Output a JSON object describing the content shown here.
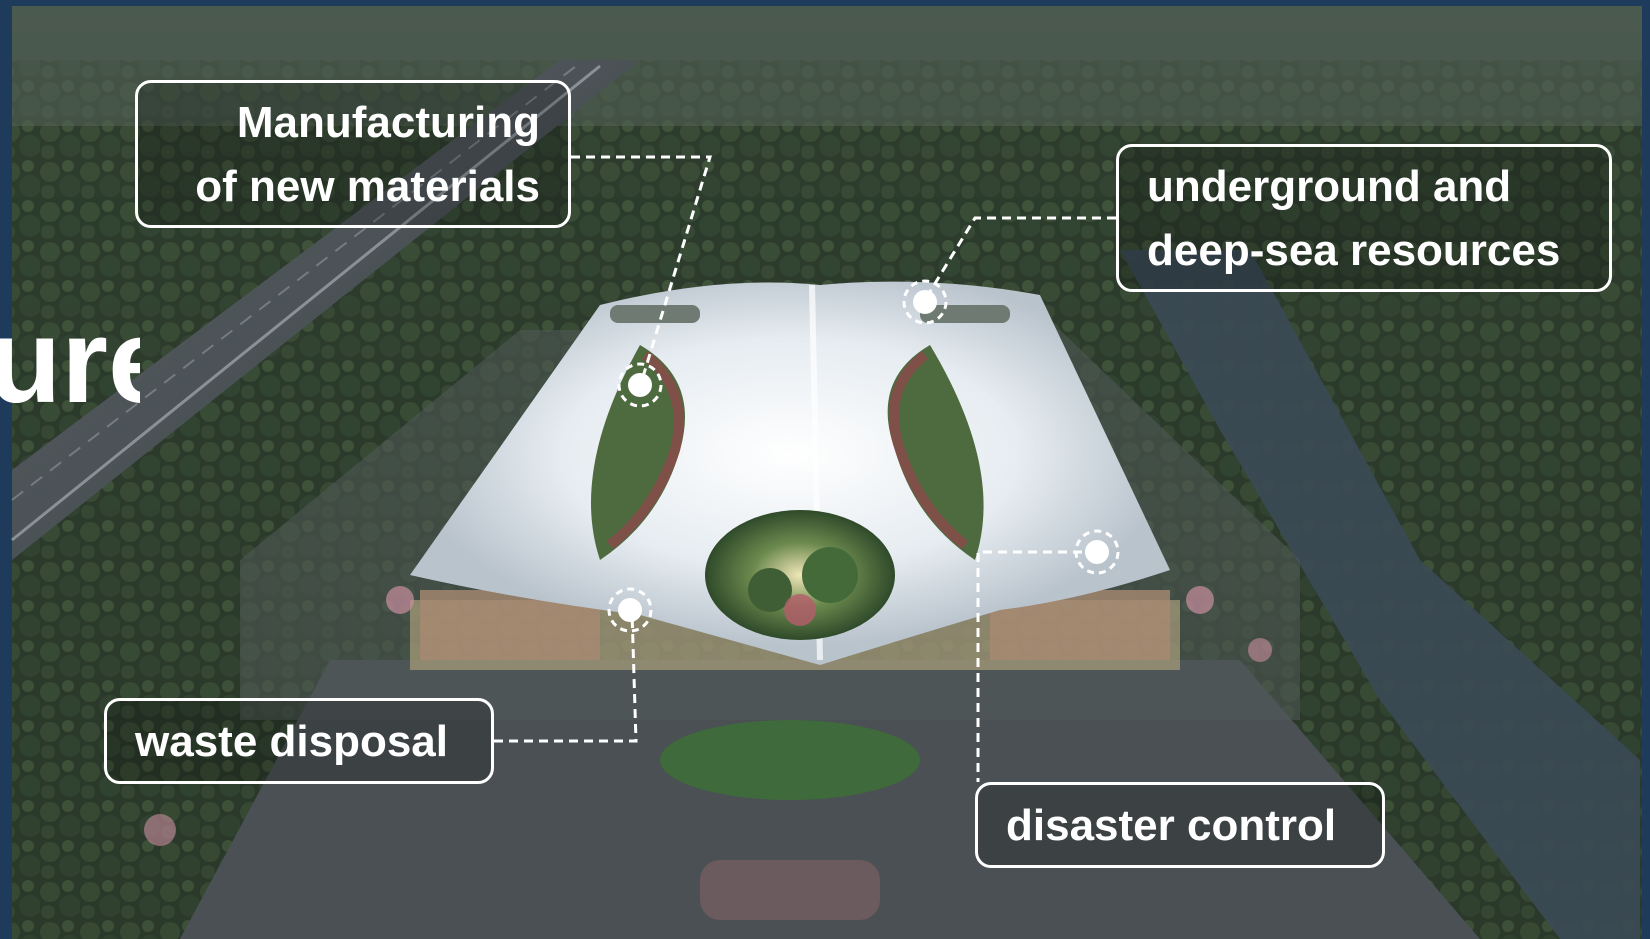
{
  "title_fragment": "ure",
  "callouts": {
    "manufacturing": {
      "line1": "Manufacturing",
      "line2": "of new materials"
    },
    "underground": {
      "line1": "underground and",
      "line2": "deep-sea resources"
    },
    "waste": {
      "text": "waste disposal"
    },
    "disaster": {
      "text": "disaster control"
    }
  }
}
